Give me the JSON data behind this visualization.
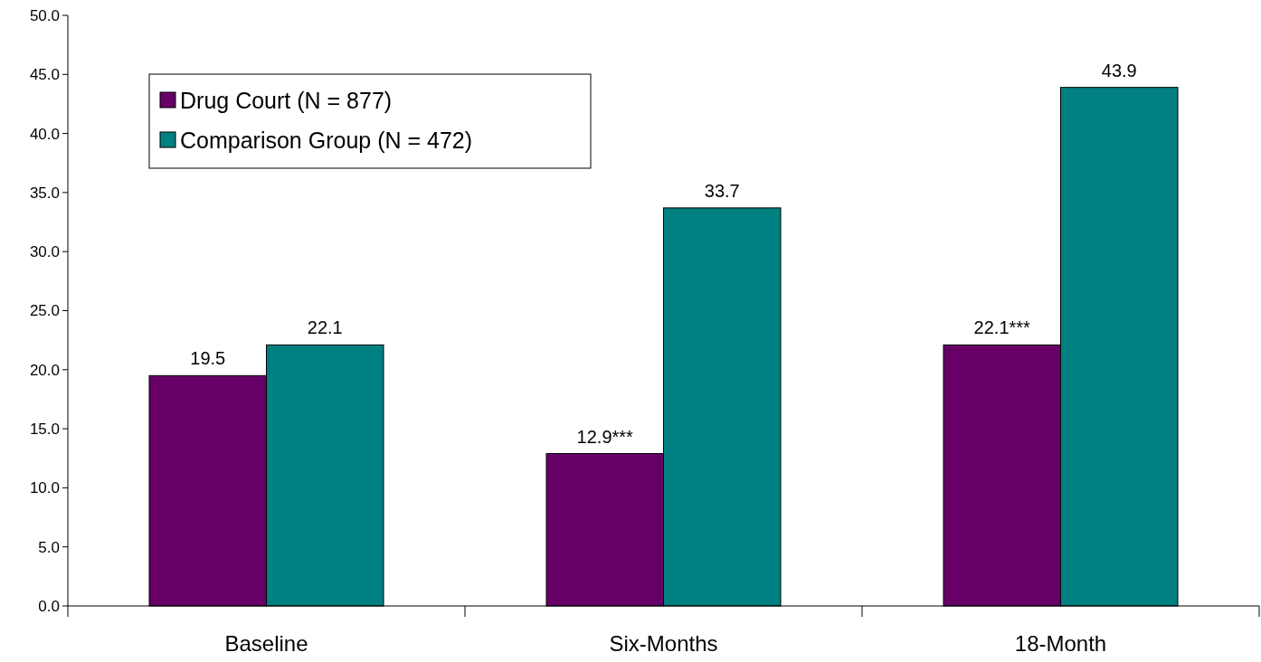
{
  "chart_data": {
    "type": "bar",
    "categories": [
      "Baseline",
      "Six-Months",
      "18-Month"
    ],
    "series": [
      {
        "name": "Drug Court (N = 877)",
        "color": "#660066",
        "values": [
          19.5,
          12.9,
          22.1
        ],
        "value_labels": [
          "19.5",
          "12.9***",
          "22.1***"
        ]
      },
      {
        "name": "Comparison Group (N = 472)",
        "color": "#008080",
        "values": [
          22.1,
          33.7,
          43.9
        ],
        "value_labels": [
          "22.1",
          "33.7",
          "43.9"
        ]
      }
    ],
    "ylim": [
      0,
      50
    ],
    "yticks": [
      {
        "value": 0,
        "label": "0.0"
      },
      {
        "value": 5,
        "label": "5.0"
      },
      {
        "value": 10,
        "label": "10.0"
      },
      {
        "value": 15,
        "label": "15.0"
      },
      {
        "value": 20,
        "label": "20.0"
      },
      {
        "value": 25,
        "label": "25.0"
      },
      {
        "value": 30,
        "label": "30.0"
      },
      {
        "value": 35,
        "label": "35.0"
      },
      {
        "value": 40,
        "label": "40.0"
      },
      {
        "value": 45,
        "label": "45.0"
      },
      {
        "value": 50,
        "label": "50.0"
      }
    ],
    "legend": "top left",
    "grid": false
  }
}
